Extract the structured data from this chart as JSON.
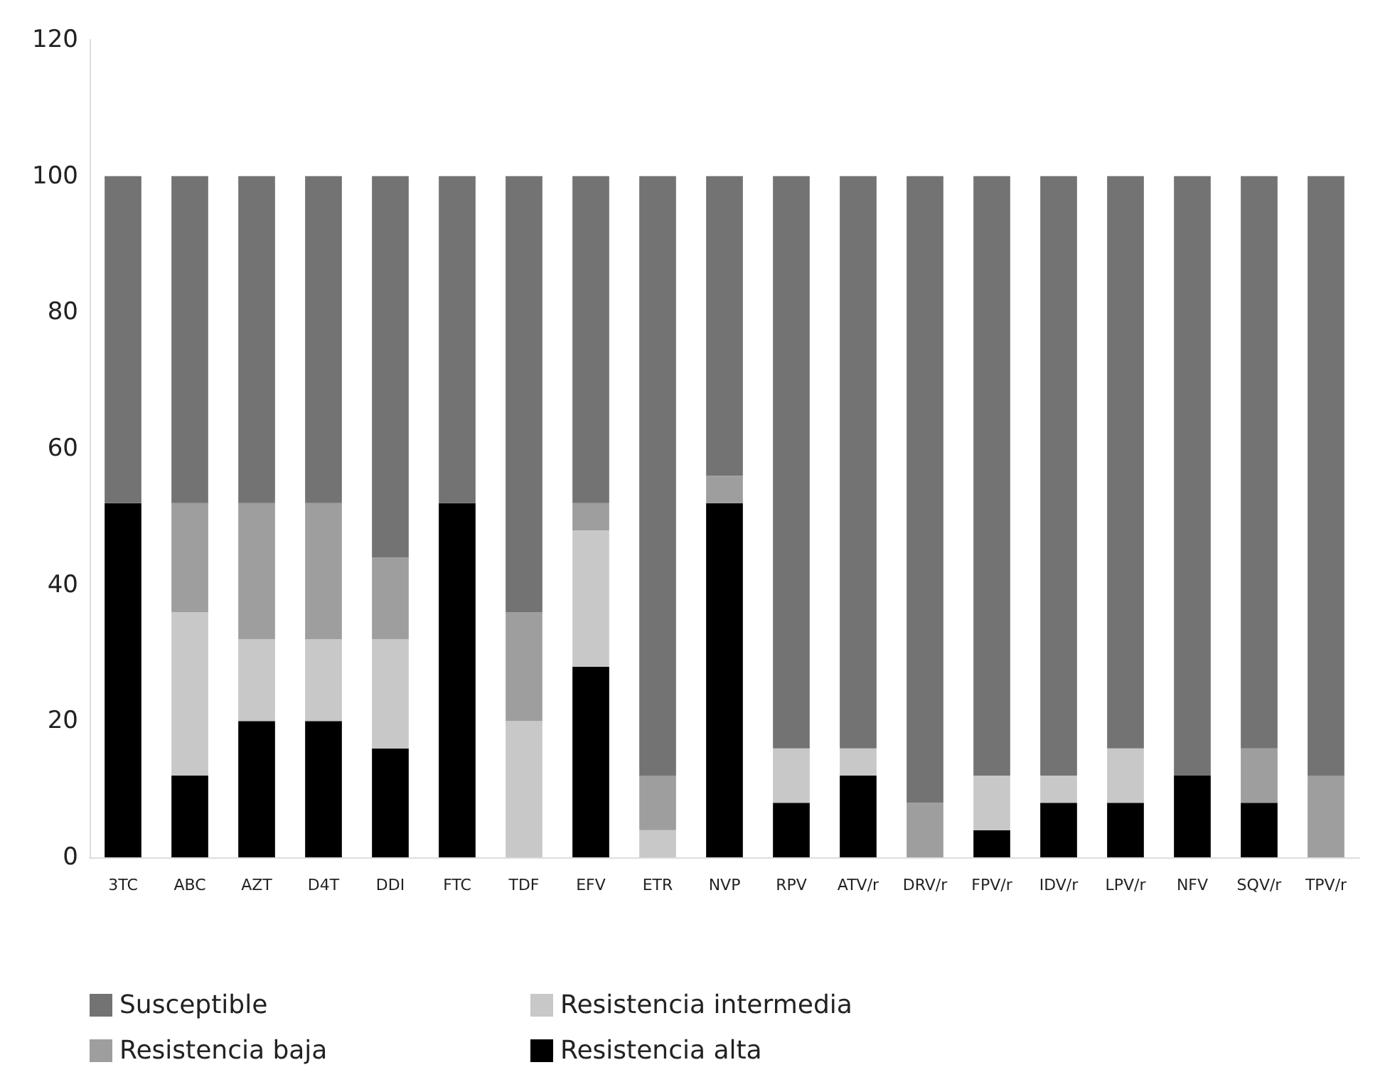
{
  "chart_data": {
    "type": "bar",
    "stacked": true,
    "categories": [
      "3TC",
      "ABC",
      "AZT",
      "D4T",
      "DDI",
      "FTC",
      "TDF",
      "EFV",
      "ETR",
      "NVP",
      "RPV",
      "ATV/r",
      "DRV/r",
      "FPV/r",
      "IDV/r",
      "LPV/r",
      "NFV",
      "SQV/r",
      "TPV/r"
    ],
    "series": [
      {
        "name": "Resistencia alta",
        "color": "#000000",
        "values": [
          52,
          12,
          20,
          20,
          16,
          52,
          0,
          28,
          0,
          52,
          8,
          12,
          0,
          4,
          8,
          8,
          12,
          8,
          0
        ]
      },
      {
        "name": "Resistencia intermedia",
        "color": "#c8c8c8",
        "values": [
          0,
          24,
          12,
          12,
          16,
          0,
          20,
          20,
          4,
          0,
          8,
          4,
          0,
          8,
          4,
          8,
          0,
          0,
          0
        ]
      },
      {
        "name": "Resistencia baja",
        "color": "#9e9e9e",
        "values": [
          0,
          16,
          20,
          20,
          12,
          0,
          16,
          4,
          8,
          4,
          0,
          0,
          8,
          0,
          0,
          0,
          0,
          8,
          12
        ]
      },
      {
        "name": "Susceptible",
        "color": "#737373",
        "values": [
          48,
          48,
          48,
          48,
          56,
          48,
          64,
          48,
          88,
          44,
          84,
          84,
          92,
          88,
          88,
          84,
          88,
          84,
          88
        ]
      }
    ],
    "ylim": [
      0,
      120
    ],
    "yticks": [
      0,
      20,
      40,
      60,
      80,
      100,
      120
    ],
    "grid": false,
    "legend": "bottom"
  }
}
